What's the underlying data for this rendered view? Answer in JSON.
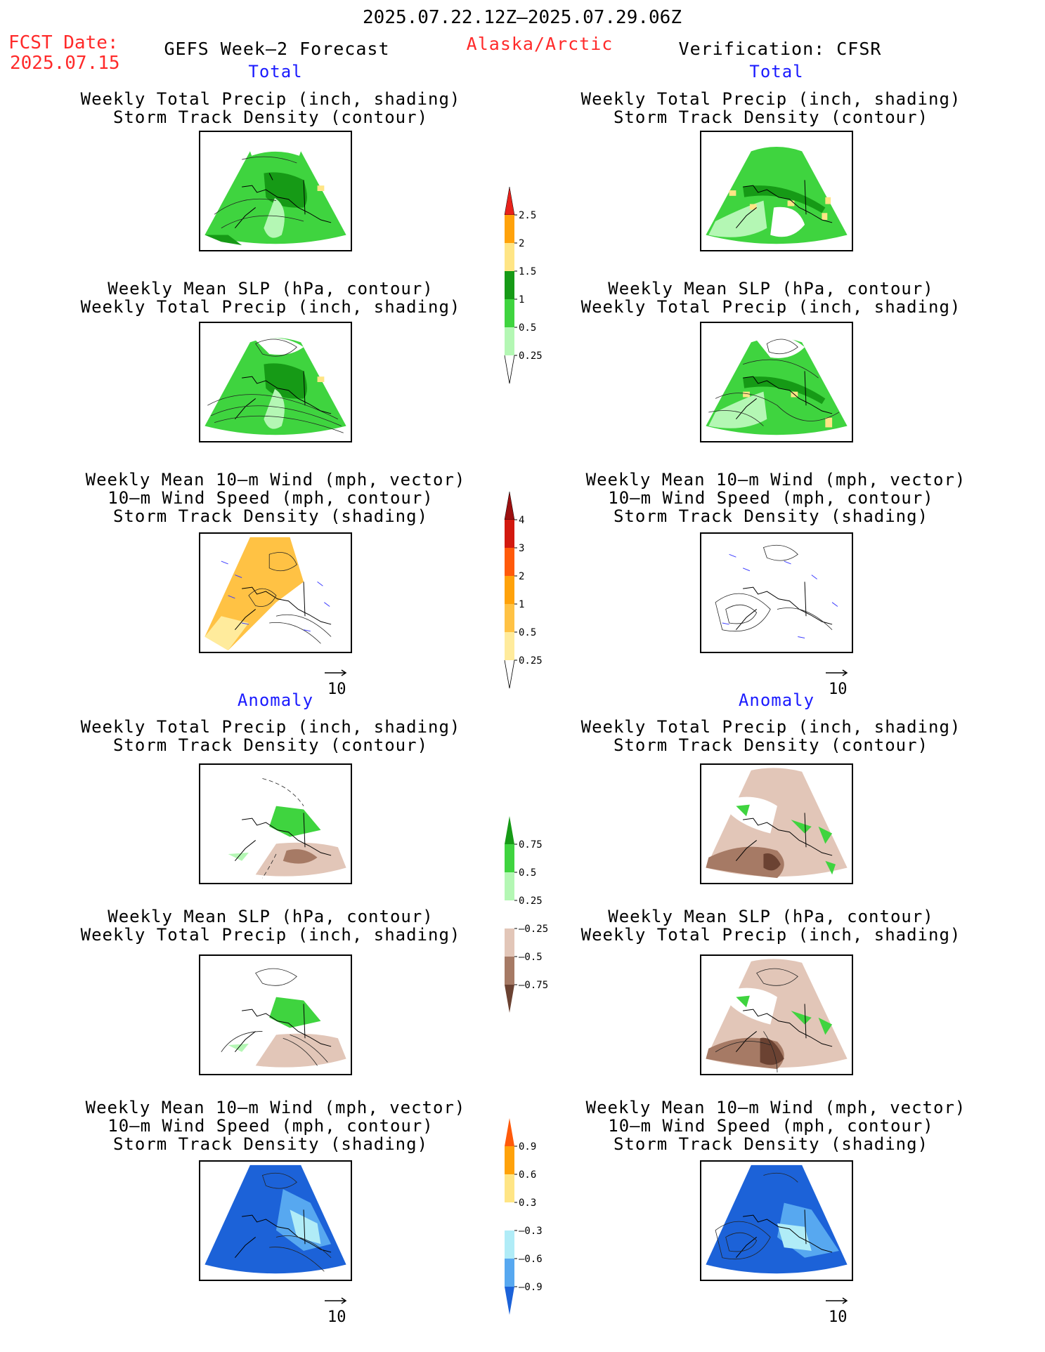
{
  "header": {
    "date_range": "2025.07.22.12Z–2025.07.29.06Z",
    "fcst_label": "FCST Date:",
    "fcst_date": "2025.07.15",
    "left_title": "GEFS Week–2 Forecast",
    "region": "Alaska/Arctic",
    "right_title": "Verification: CFSR"
  },
  "sections": {
    "total": "Total",
    "anomaly": "Anomaly"
  },
  "panel_titles": {
    "precip_storm": [
      "Weekly Total Precip (inch, shading)",
      "Storm Track Density (contour)"
    ],
    "slp_precip": [
      "Weekly Mean SLP (hPa, contour)",
      "Weekly Total Precip (inch, shading)"
    ],
    "wind_storm": [
      "Weekly Mean 10–m Wind (mph, vector)",
      "10–m Wind Speed (mph, contour)",
      "Storm Track Density (shading)"
    ]
  },
  "vector_reference": "10",
  "colorbars": {
    "total_precip": {
      "labels": [
        "2.5",
        "2",
        "1.5",
        "1",
        "0.5",
        "0.25"
      ],
      "colors": [
        "#e8221b",
        "#ffa20a",
        "#ffe585",
        "#169a16",
        "#3fd43f",
        "#b4f7b4"
      ]
    },
    "total_storm": {
      "labels": [
        "4",
        "3",
        "2",
        "1",
        "0.5",
        "0.25"
      ],
      "colors": [
        "#9c0f0f",
        "#d2190f",
        "#ff5a0a",
        "#ffa20a",
        "#ffc244",
        "#ffeb9c"
      ]
    },
    "anom_precip": {
      "labels": [
        "0.75",
        "0.5",
        "0.25",
        "–0.25",
        "–0.5",
        "–0.75"
      ],
      "colors": [
        "#169a16",
        "#3fd43f",
        "#b4f7b4",
        "#ffffff",
        "#e2c6b8",
        "#a67a65",
        "#6b4232"
      ]
    },
    "anom_storm": {
      "labels": [
        "0.9",
        "0.6",
        "0.3",
        "–0.3",
        "–0.6",
        "–0.9"
      ],
      "colors": [
        "#ff5a0a",
        "#ffa20a",
        "#ffe585",
        "#ffffff",
        "#b0ecf7",
        "#57a8f0",
        "#1c62d8"
      ]
    }
  },
  "colors": {
    "header_red": "#ff2a2a",
    "section_blue": "#1a1aff"
  }
}
